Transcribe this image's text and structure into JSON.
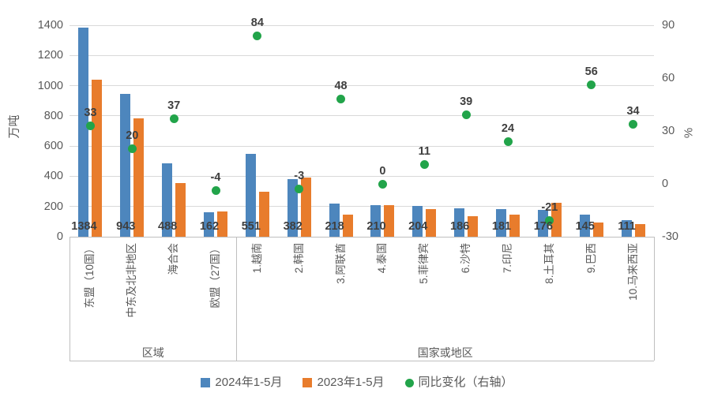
{
  "chart_data": {
    "type": "bar",
    "title": "",
    "categories": [
      "东盟（10国）",
      "中东及北非地区",
      "海合会",
      "欧盟（27国）",
      "1.越南",
      "2.韩国",
      "3.阿联酋",
      "4.泰国",
      "5.菲律宾",
      "6.沙特",
      "7.印尼",
      "8.土耳其",
      "9.巴西",
      "10.马来西亚"
    ],
    "series": [
      {
        "name": "2024年1-5月",
        "type": "bar",
        "axis": "left",
        "color": "#4d86bd",
        "values": [
          1384,
          943,
          488,
          162,
          551,
          382,
          218,
          210,
          204,
          186,
          181,
          176,
          145,
          111
        ],
        "show_labels": true
      },
      {
        "name": "2023年1-5月",
        "type": "bar",
        "axis": "left",
        "color": "#e87c2c",
        "values": [
          1041,
          786,
          356,
          169,
          300,
          394,
          147,
          210,
          184,
          134,
          146,
          223,
          93,
          83
        ],
        "show_labels": false
      },
      {
        "name": "同比变化（右轴）",
        "type": "scatter",
        "axis": "right",
        "color": "#22a44a",
        "values": [
          33,
          20,
          37,
          -4,
          84,
          -3,
          48,
          0,
          11,
          39,
          24,
          -21,
          56,
          34
        ],
        "show_labels": true
      }
    ],
    "group_labels": [
      {
        "label": "区域",
        "span": 4
      },
      {
        "label": "国家或地区",
        "span": 10
      }
    ],
    "ylabel": "万吨",
    "y2label": "%",
    "ylim": [
      0,
      1400
    ],
    "yticks": [
      0,
      200,
      400,
      600,
      800,
      1000,
      1200,
      1400
    ],
    "y2lim": [
      -30,
      90
    ],
    "y2ticks": [
      90,
      60,
      30,
      0,
      -30
    ],
    "grid": true,
    "legend_position": "bottom"
  },
  "colors": {
    "grid": "#d9d9d9",
    "axis_line": "#bfbfbf",
    "tick_text": "#595959",
    "value_label": "#3f3f3f"
  }
}
